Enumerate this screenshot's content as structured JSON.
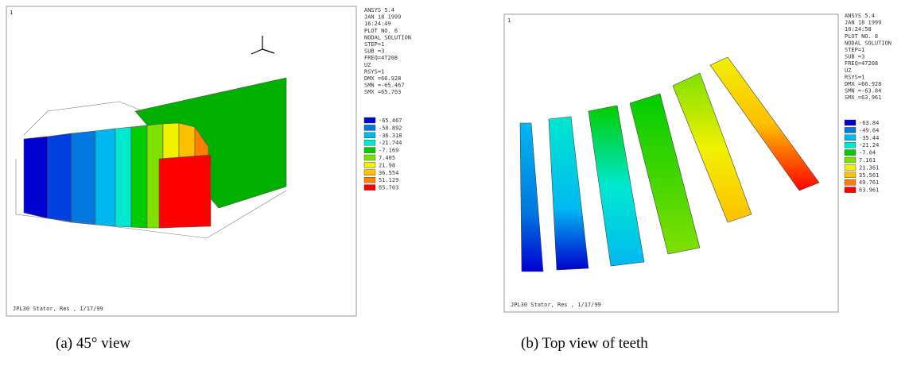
{
  "panels": [
    {
      "corner": "1",
      "info": [
        "ANSYS 5.4",
        "JAN 18 1999",
        "16:24:49",
        "PLOT NO.   6",
        "NODAL SOLUTION",
        "STEP=1",
        "SUB =3",
        "FREQ=47208",
        "UZ",
        "RSYS=1",
        "DMX =66.928",
        "SMN =-65.467",
        "SMX =65.703"
      ],
      "legend": [
        "-65.467",
        "-50.892",
        "-36.318",
        "-21.744",
        "-7.169",
        "7.405",
        "21.98",
        "36.554",
        "51.129",
        "65.703"
      ],
      "footer": "JPL30 Stator, Res , 1/17/99",
      "caption": "(a) 45° view"
    },
    {
      "corner": "1",
      "info": [
        "ANSYS 5.4",
        "JAN 18 1999",
        "16:24:58",
        "PLOT NO.   8",
        "NODAL SOLUTION",
        "STEP=1",
        "SUB =3",
        "FREQ=47208",
        "UZ",
        "RSYS=1",
        "DMX =66.928",
        "SMN =-63.84",
        "SMX =63.961"
      ],
      "legend": [
        "-63.84",
        "-49.64",
        "-35.44",
        "-21.24",
        "-7.04",
        "7.161",
        "21.361",
        "35.561",
        "49.761",
        "63.961"
      ],
      "footer": "JPL30 Stator, Res , 1/17/99",
      "caption": "(b) Top view of teeth"
    }
  ],
  "legend_colors": [
    "#0000d0",
    "#0078e0",
    "#00b8f0",
    "#00e8d0",
    "#00cc00",
    "#80e000",
    "#f0f000",
    "#ffc000",
    "#ff8000",
    "#ff0000"
  ]
}
